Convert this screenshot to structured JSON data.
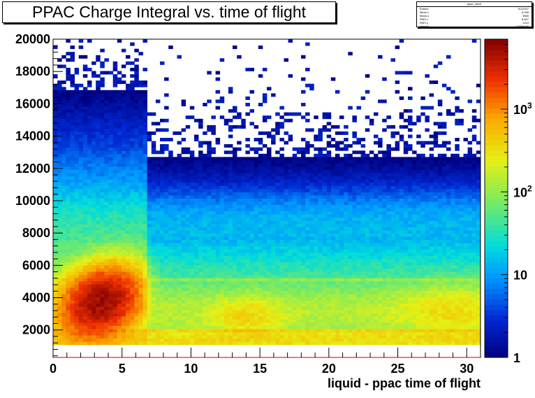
{
  "chart_data": {
    "type": "heatmap",
    "title": "PPAC Charge Integral vs. time of flight",
    "xlabel": "liquid - ppac time of flight",
    "ylabel": "",
    "xlim": [
      0,
      31
    ],
    "ylim": [
      300,
      20000
    ],
    "xticks": [
      0,
      5,
      10,
      15,
      20,
      25,
      30
    ],
    "yticks": [
      2000,
      4000,
      6000,
      8000,
      10000,
      12000,
      14000,
      16000,
      18000,
      20000
    ],
    "z_scale": "log",
    "zlim": [
      1,
      7000
    ],
    "zticks": [
      {
        "value": 1,
        "label": "1"
      },
      {
        "value": 10,
        "label": "10"
      },
      {
        "value": 100,
        "label": "10",
        "sup": "2"
      },
      {
        "value": 1000,
        "label": "10",
        "sup": "3"
      }
    ],
    "stats": {
      "name": "ppac_tofvsI",
      "rows": [
        {
          "label": "Entries",
          "value": "3122207"
        },
        {
          "label": "Mean x",
          "value": "6.298"
        },
        {
          "label": "Mean y",
          "value": "3566"
        },
        {
          "label": "RMS x",
          "value": "8.647"
        },
        {
          "label": "RMS y",
          "value": "1244"
        },
        {
          "label": "Integral",
          "value": "1.588e+06"
        }
      ]
    },
    "description_of_density": "Dense band 1200-2000 at all x; hot region peak ~x=3.5, y=3500 (>5000 counts) extending to y~7000 and dropping sharply at x~6.5; broad plateau 2000-5000 across x (~100-300 counts, higher near x=14 and x=28-31); sparse tail to 20000."
  }
}
